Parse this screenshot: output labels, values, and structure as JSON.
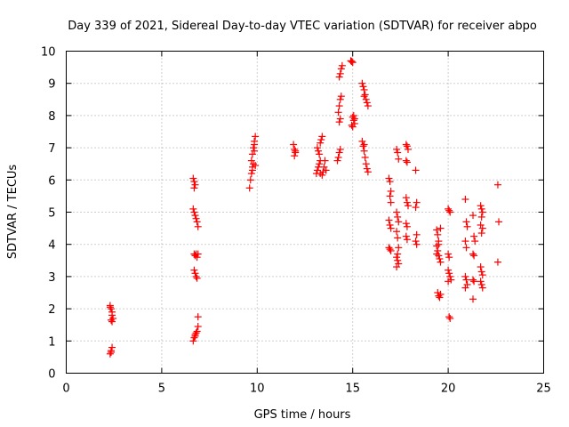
{
  "chart_data": {
    "type": "scatter",
    "title": "Day 339 of 2021, Sidereal Day-to-day VTEC variation (SDTVAR) for receiver abpo",
    "xlabel": "GPS time / hours",
    "ylabel": "SDTVAR / TECUs",
    "xlim": [
      0,
      25
    ],
    "ylim": [
      0,
      10
    ],
    "xticks": [
      0,
      5,
      10,
      15,
      20,
      25
    ],
    "yticks": [
      0,
      1,
      2,
      3,
      4,
      5,
      6,
      7,
      8,
      9,
      10
    ],
    "grid": true,
    "marker": "plus",
    "color": "#ff0000",
    "series": [
      {
        "name": "SDTVAR",
        "points": [
          [
            2.3,
            2.1
          ],
          [
            2.35,
            2.0
          ],
          [
            2.4,
            1.9
          ],
          [
            2.4,
            1.8
          ],
          [
            2.35,
            1.65
          ],
          [
            2.4,
            1.6
          ],
          [
            2.45,
            1.7
          ],
          [
            2.3,
            2.05
          ],
          [
            2.3,
            0.6
          ],
          [
            2.35,
            0.7
          ],
          [
            2.4,
            0.8
          ],
          [
            2.35,
            0.65
          ],
          [
            6.65,
            6.05
          ],
          [
            6.7,
            5.95
          ],
          [
            6.75,
            5.85
          ],
          [
            6.7,
            5.75
          ],
          [
            6.65,
            5.1
          ],
          [
            6.7,
            5.0
          ],
          [
            6.75,
            4.9
          ],
          [
            6.8,
            4.8
          ],
          [
            6.85,
            4.7
          ],
          [
            6.9,
            4.55
          ],
          [
            6.7,
            3.7
          ],
          [
            6.75,
            3.65
          ],
          [
            6.8,
            3.7
          ],
          [
            6.85,
            3.6
          ],
          [
            6.9,
            3.7
          ],
          [
            6.7,
            3.2
          ],
          [
            6.75,
            3.1
          ],
          [
            6.8,
            3.0
          ],
          [
            6.85,
            2.95
          ],
          [
            6.9,
            1.75
          ],
          [
            6.9,
            1.45
          ],
          [
            6.85,
            1.3
          ],
          [
            6.8,
            1.25
          ],
          [
            6.75,
            1.2
          ],
          [
            6.7,
            1.1
          ],
          [
            6.65,
            1.0
          ],
          [
            6.75,
            1.15
          ],
          [
            9.6,
            5.75
          ],
          [
            9.65,
            6.0
          ],
          [
            9.7,
            6.2
          ],
          [
            9.75,
            6.4
          ],
          [
            9.7,
            6.6
          ],
          [
            9.75,
            6.8
          ],
          [
            9.8,
            7.0
          ],
          [
            9.85,
            7.2
          ],
          [
            9.9,
            7.35
          ],
          [
            9.85,
            6.9
          ],
          [
            9.8,
            6.5
          ],
          [
            9.75,
            6.3
          ],
          [
            9.9,
            6.45
          ],
          [
            9.85,
            7.1
          ],
          [
            11.9,
            7.1
          ],
          [
            11.95,
            6.95
          ],
          [
            12.0,
            6.85
          ],
          [
            11.95,
            6.75
          ],
          [
            12.0,
            6.9
          ],
          [
            13.1,
            6.2
          ],
          [
            13.15,
            6.3
          ],
          [
            13.2,
            6.4
          ],
          [
            13.25,
            6.5
          ],
          [
            13.3,
            6.6
          ],
          [
            13.2,
            6.9
          ],
          [
            13.15,
            7.0
          ],
          [
            13.25,
            6.8
          ],
          [
            13.3,
            7.15
          ],
          [
            13.35,
            7.25
          ],
          [
            13.4,
            7.35
          ],
          [
            13.45,
            6.25
          ],
          [
            13.5,
            6.4
          ],
          [
            13.55,
            6.6
          ],
          [
            13.6,
            6.3
          ],
          [
            13.4,
            6.15
          ],
          [
            13.3,
            6.2
          ],
          [
            14.2,
            6.6
          ],
          [
            14.25,
            6.7
          ],
          [
            14.3,
            6.85
          ],
          [
            14.35,
            6.95
          ],
          [
            14.3,
            7.8
          ],
          [
            14.35,
            7.9
          ],
          [
            14.25,
            8.1
          ],
          [
            14.3,
            8.3
          ],
          [
            14.35,
            8.5
          ],
          [
            14.4,
            8.6
          ],
          [
            14.35,
            9.3
          ],
          [
            14.4,
            9.45
          ],
          [
            14.45,
            9.55
          ],
          [
            14.3,
            9.2
          ],
          [
            14.9,
            9.7
          ],
          [
            15.0,
            9.65
          ],
          [
            14.95,
            9.68
          ],
          [
            15.0,
            7.95
          ],
          [
            15.05,
            7.85
          ],
          [
            15.1,
            7.75
          ],
          [
            15.0,
            7.65
          ],
          [
            14.95,
            7.7
          ],
          [
            15.1,
            7.9
          ],
          [
            15.05,
            8.0
          ],
          [
            15.5,
            9.0
          ],
          [
            15.55,
            8.9
          ],
          [
            15.6,
            8.8
          ],
          [
            15.65,
            8.65
          ],
          [
            15.7,
            8.5
          ],
          [
            15.75,
            8.4
          ],
          [
            15.8,
            8.3
          ],
          [
            15.6,
            8.6
          ],
          [
            15.5,
            7.2
          ],
          [
            15.55,
            7.05
          ],
          [
            15.6,
            6.9
          ],
          [
            15.65,
            6.7
          ],
          [
            15.7,
            6.5
          ],
          [
            15.75,
            6.35
          ],
          [
            15.8,
            6.25
          ],
          [
            15.6,
            7.1
          ],
          [
            16.9,
            6.05
          ],
          [
            16.95,
            5.95
          ],
          [
            17.0,
            5.65
          ],
          [
            16.95,
            5.5
          ],
          [
            17.0,
            5.3
          ],
          [
            16.9,
            4.75
          ],
          [
            16.95,
            4.6
          ],
          [
            17.0,
            4.5
          ],
          [
            16.9,
            3.9
          ],
          [
            16.95,
            3.85
          ],
          [
            17.0,
            3.8
          ],
          [
            17.3,
            6.95
          ],
          [
            17.35,
            6.85
          ],
          [
            17.4,
            6.65
          ],
          [
            17.3,
            5.0
          ],
          [
            17.35,
            4.85
          ],
          [
            17.4,
            4.7
          ],
          [
            17.3,
            4.4
          ],
          [
            17.35,
            4.2
          ],
          [
            17.4,
            3.9
          ],
          [
            17.35,
            3.7
          ],
          [
            17.3,
            3.6
          ],
          [
            17.35,
            3.5
          ],
          [
            17.4,
            3.4
          ],
          [
            17.3,
            3.3
          ],
          [
            17.8,
            7.1
          ],
          [
            17.85,
            7.05
          ],
          [
            17.9,
            6.95
          ],
          [
            17.8,
            6.6
          ],
          [
            17.85,
            6.55
          ],
          [
            17.8,
            5.45
          ],
          [
            17.85,
            5.3
          ],
          [
            17.9,
            5.2
          ],
          [
            17.8,
            4.65
          ],
          [
            17.85,
            4.55
          ],
          [
            17.8,
            4.25
          ],
          [
            17.85,
            4.15
          ],
          [
            18.3,
            6.3
          ],
          [
            18.35,
            5.3
          ],
          [
            18.3,
            5.15
          ],
          [
            18.35,
            4.3
          ],
          [
            18.3,
            4.1
          ],
          [
            18.35,
            4.0
          ],
          [
            19.4,
            4.45
          ],
          [
            19.45,
            4.3
          ],
          [
            19.5,
            4.1
          ],
          [
            19.4,
            3.95
          ],
          [
            19.45,
            3.8
          ],
          [
            19.5,
            3.65
          ],
          [
            19.55,
            3.55
          ],
          [
            19.6,
            3.45
          ],
          [
            19.4,
            3.7
          ],
          [
            19.5,
            4.0
          ],
          [
            19.6,
            4.5
          ],
          [
            19.45,
            2.5
          ],
          [
            19.5,
            2.4
          ],
          [
            19.55,
            2.35
          ],
          [
            19.6,
            2.45
          ],
          [
            20.0,
            5.1
          ],
          [
            20.05,
            5.05
          ],
          [
            20.1,
            5.0
          ],
          [
            20.0,
            3.7
          ],
          [
            20.05,
            3.6
          ],
          [
            20.0,
            3.2
          ],
          [
            20.05,
            3.1
          ],
          [
            20.1,
            3.0
          ],
          [
            20.15,
            2.9
          ],
          [
            20.0,
            2.85
          ],
          [
            20.05,
            1.75
          ],
          [
            20.1,
            1.7
          ],
          [
            20.9,
            5.4
          ],
          [
            20.95,
            4.7
          ],
          [
            21.0,
            4.55
          ],
          [
            20.9,
            4.1
          ],
          [
            20.95,
            3.9
          ],
          [
            20.9,
            3.0
          ],
          [
            20.95,
            2.9
          ],
          [
            21.0,
            2.75
          ],
          [
            20.9,
            2.65
          ],
          [
            21.3,
            4.9
          ],
          [
            21.35,
            4.25
          ],
          [
            21.4,
            4.1
          ],
          [
            21.3,
            3.7
          ],
          [
            21.35,
            3.65
          ],
          [
            21.3,
            2.9
          ],
          [
            21.35,
            2.85
          ],
          [
            21.3,
            2.3
          ],
          [
            21.7,
            5.2
          ],
          [
            21.75,
            5.1
          ],
          [
            21.8,
            5.0
          ],
          [
            21.75,
            4.85
          ],
          [
            21.7,
            4.6
          ],
          [
            21.8,
            4.5
          ],
          [
            21.75,
            4.35
          ],
          [
            21.7,
            3.3
          ],
          [
            21.75,
            3.15
          ],
          [
            21.8,
            3.05
          ],
          [
            21.7,
            2.85
          ],
          [
            21.75,
            2.75
          ],
          [
            21.8,
            2.65
          ],
          [
            22.6,
            5.85
          ],
          [
            22.65,
            4.7
          ],
          [
            22.6,
            3.45
          ]
        ]
      }
    ]
  }
}
